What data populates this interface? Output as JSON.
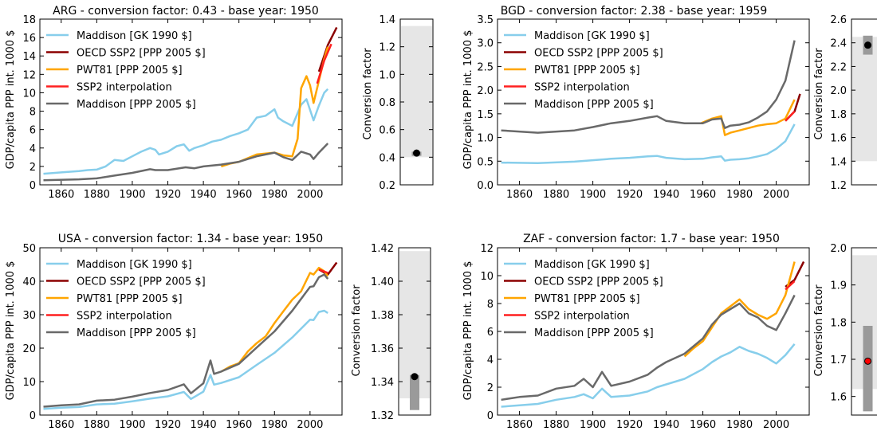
{
  "chart_data": [
    {
      "type": "line",
      "title": "ARG - conversion factor: 0.43 - base year: 1950",
      "ylabel": "GDP/capita PPP int. 1000 $",
      "xlabel": "",
      "xlim": [
        1848,
        2018
      ],
      "ylim": [
        0,
        18
      ],
      "xticks": [
        1860,
        1880,
        1900,
        1920,
        1940,
        1960,
        1980,
        2000
      ],
      "yticks": [
        0,
        2,
        4,
        6,
        8,
        10,
        12,
        14,
        16,
        18
      ],
      "legend_loc": "upper-left",
      "series": [
        {
          "name": "Maddison [GK 1990 $]",
          "color": "#87ceeb",
          "x": [
            1850,
            1860,
            1870,
            1875,
            1880,
            1885,
            1890,
            1895,
            1900,
            1905,
            1910,
            1913,
            1915,
            1920,
            1925,
            1929,
            1932,
            1935,
            1940,
            1945,
            1950,
            1955,
            1960,
            1965,
            1970,
            1975,
            1980,
            1982,
            1985,
            1990,
            1995,
            1998,
            2002,
            2005,
            2008,
            2010
          ],
          "y": [
            1.2,
            1.35,
            1.5,
            1.6,
            1.65,
            2.0,
            2.7,
            2.6,
            3.1,
            3.6,
            4.0,
            3.8,
            3.3,
            3.6,
            4.2,
            4.4,
            3.7,
            4.0,
            4.3,
            4.7,
            4.9,
            5.3,
            5.6,
            6.0,
            7.3,
            7.5,
            8.2,
            7.3,
            6.9,
            6.4,
            8.7,
            9.3,
            7.0,
            8.6,
            10.0,
            10.4
          ]
        },
        {
          "name": "OECD SSP2 [PPP 2005 $]",
          "color": "#8b0000",
          "x": [
            2005,
            2010,
            2015
          ],
          "y": [
            12.3,
            15.2,
            17.1
          ]
        },
        {
          "name": "PWT81 [PPP 2005 $]",
          "color": "#ffa500",
          "x": [
            1950,
            1955,
            1960,
            1965,
            1970,
            1975,
            1980,
            1985,
            1990,
            1993,
            1995,
            1998,
            2000,
            2002,
            2005,
            2008,
            2010
          ],
          "y": [
            2.0,
            2.3,
            2.5,
            2.9,
            3.3,
            3.4,
            3.5,
            3.2,
            3.1,
            5.0,
            10.5,
            11.8,
            10.8,
            8.9,
            11.3,
            13.7,
            15.0
          ]
        },
        {
          "name": "SSP2 interpolation",
          "color": "#ff2020",
          "x": [
            2004,
            2008,
            2012
          ],
          "y": [
            11.0,
            13.5,
            15.3
          ]
        },
        {
          "name": "Maddison [PPP 2005 $]",
          "color": "#696969",
          "x": [
            1850,
            1870,
            1880,
            1890,
            1900,
            1910,
            1913,
            1920,
            1930,
            1935,
            1940,
            1945,
            1950,
            1960,
            1970,
            1975,
            1980,
            1985,
            1990,
            1995,
            2000,
            2002,
            2005,
            2010
          ],
          "y": [
            0.5,
            0.6,
            0.7,
            1.0,
            1.3,
            1.7,
            1.6,
            1.6,
            1.9,
            1.8,
            2.0,
            2.1,
            2.2,
            2.5,
            3.1,
            3.3,
            3.5,
            3.0,
            2.7,
            3.6,
            3.3,
            2.8,
            3.5,
            4.5
          ]
        }
      ]
    },
    {
      "type": "range",
      "ylabel": "Conversion factor",
      "ylim": [
        0.2,
        1.4
      ],
      "yticks": [
        "0.2",
        "0.4",
        "0.6",
        "0.8",
        "1.0",
        "1.2",
        "1.4"
      ],
      "light_range": [
        0.4,
        1.35
      ],
      "dark_range": [
        0.41,
        0.44
      ],
      "point": 0.43,
      "point_color": "#000000"
    },
    {
      "type": "line",
      "title": "BGD - conversion factor: 2.38 - base year: 1959",
      "ylabel": "GDP/capita PPP int. 1000 $",
      "xlabel": "",
      "xlim": [
        1848,
        2018
      ],
      "ylim": [
        0,
        3.5
      ],
      "xticks": [
        1860,
        1880,
        1900,
        1920,
        1940,
        1960,
        1980,
        2000
      ],
      "yticks": [
        "0.0",
        "0.5",
        "1.0",
        "1.5",
        "2.0",
        "2.5",
        "3.0",
        "3.5"
      ],
      "legend_loc": "upper-left",
      "series": [
        {
          "name": "Maddison [GK 1990 $]",
          "color": "#87ceeb",
          "x": [
            1850,
            1870,
            1890,
            1900,
            1910,
            1920,
            1930,
            1935,
            1940,
            1950,
            1960,
            1965,
            1970,
            1972,
            1975,
            1980,
            1985,
            1990,
            1995,
            2000,
            2005,
            2010
          ],
          "y": [
            0.47,
            0.46,
            0.49,
            0.52,
            0.55,
            0.57,
            0.6,
            0.61,
            0.57,
            0.54,
            0.55,
            0.58,
            0.6,
            0.51,
            0.53,
            0.54,
            0.56,
            0.6,
            0.65,
            0.76,
            0.92,
            1.28
          ]
        },
        {
          "name": "OECD SSP2 [PPP 2005 $]",
          "color": "#8b0000",
          "x": [
            2005,
            2010,
            2013
          ],
          "y": [
            1.35,
            1.55,
            1.92
          ]
        },
        {
          "name": "PWT81 [PPP 2005 $]",
          "color": "#ffa500",
          "x": [
            1959,
            1965,
            1970,
            1972,
            1975,
            1980,
            1985,
            1990,
            1995,
            2000,
            2005,
            2010
          ],
          "y": [
            1.3,
            1.4,
            1.45,
            1.05,
            1.1,
            1.15,
            1.2,
            1.25,
            1.28,
            1.3,
            1.4,
            1.8
          ]
        },
        {
          "name": "SSP2 interpolation",
          "color": "#ff2020",
          "x": [
            2005,
            2010
          ],
          "y": [
            1.35,
            1.55
          ]
        },
        {
          "name": "Maddison [PPP 2005 $]",
          "color": "#696969",
          "x": [
            1850,
            1870,
            1890,
            1900,
            1910,
            1920,
            1930,
            1935,
            1940,
            1950,
            1960,
            1965,
            1970,
            1972,
            1975,
            1980,
            1985,
            1990,
            1995,
            2000,
            2005,
            2010
          ],
          "y": [
            1.15,
            1.1,
            1.15,
            1.22,
            1.3,
            1.35,
            1.42,
            1.45,
            1.35,
            1.3,
            1.3,
            1.38,
            1.4,
            1.2,
            1.25,
            1.27,
            1.32,
            1.42,
            1.55,
            1.8,
            2.2,
            3.05
          ]
        }
      ]
    },
    {
      "type": "range",
      "ylabel": "Conversion factor",
      "ylim": [
        1.2,
        2.6
      ],
      "yticks": [
        "1.2",
        "1.4",
        "1.6",
        "1.8",
        "2.0",
        "2.2",
        "2.4",
        "2.6"
      ],
      "light_range": [
        1.4,
        2.45
      ],
      "dark_range": [
        2.3,
        2.46
      ],
      "point": 2.38,
      "point_color": "#000000"
    },
    {
      "type": "line",
      "title": "USA - conversion factor: 1.34 - base year: 1950",
      "ylabel": "GDP/capita PPP int. 1000 $",
      "xlabel": "",
      "xlim": [
        1848,
        2018
      ],
      "ylim": [
        0,
        50
      ],
      "xticks": [
        1860,
        1880,
        1900,
        1920,
        1940,
        1960,
        1980,
        2000
      ],
      "yticks": [
        0,
        10,
        20,
        30,
        40,
        50
      ],
      "legend_loc": "upper-left",
      "series": [
        {
          "name": "Maddison [GK 1990 $]",
          "color": "#87ceeb",
          "x": [
            1850,
            1860,
            1870,
            1880,
            1890,
            1900,
            1910,
            1920,
            1929,
            1933,
            1940,
            1944,
            1946,
            1950,
            1960,
            1970,
            1980,
            1990,
            2000,
            2002,
            2005,
            2008,
            2010
          ],
          "y": [
            1.85,
            2.2,
            2.4,
            3.2,
            3.4,
            4.1,
            4.9,
            5.6,
            6.9,
            4.8,
            7.0,
            12.0,
            9.1,
            9.6,
            11.3,
            15.0,
            18.6,
            23.2,
            28.5,
            28.4,
            30.8,
            31.2,
            30.5
          ]
        },
        {
          "name": "OECD SSP2 [PPP 2005 $]",
          "color": "#8b0000",
          "x": [
            2005,
            2010,
            2015
          ],
          "y": [
            43.5,
            42.0,
            45.6
          ]
        },
        {
          "name": "PWT81 [PPP 2005 $]",
          "color": "#ffa500",
          "x": [
            1950,
            1955,
            1960,
            1965,
            1970,
            1975,
            1980,
            1985,
            1990,
            1995,
            2000,
            2002,
            2005,
            2008,
            2010
          ],
          "y": [
            13.0,
            14.5,
            15.5,
            19.0,
            21.5,
            23.5,
            27.5,
            31.0,
            34.5,
            37.0,
            42.5,
            42.0,
            44.0,
            43.0,
            41.5
          ]
        },
        {
          "name": "SSP2 interpolation",
          "color": "#ff2020",
          "x": [
            2005,
            2010
          ],
          "y": [
            43.5,
            42.5
          ]
        },
        {
          "name": "Maddison [PPP 2005 $]",
          "color": "#696969",
          "x": [
            1850,
            1860,
            1870,
            1880,
            1890,
            1900,
            1910,
            1920,
            1929,
            1933,
            1940,
            1944,
            1946,
            1950,
            1960,
            1970,
            1980,
            1990,
            2000,
            2002,
            2005,
            2008,
            2010
          ],
          "y": [
            2.5,
            2.9,
            3.2,
            4.3,
            4.6,
            5.5,
            6.6,
            7.5,
            9.2,
            6.5,
            9.5,
            16.3,
            12.3,
            13.0,
            15.3,
            20.2,
            25.0,
            31.2,
            38.3,
            38.5,
            41.2,
            42.0,
            40.7
          ]
        }
      ]
    },
    {
      "type": "range",
      "ylabel": "Conversion factor",
      "ylim": [
        1.32,
        1.42
      ],
      "yticks": [
        "1.32",
        "1.34",
        "1.36",
        "1.38",
        "1.40",
        "1.42"
      ],
      "light_range": [
        1.33,
        1.418
      ],
      "dark_range": [
        1.323,
        1.344
      ],
      "point": 1.343,
      "point_color": "#000000"
    },
    {
      "type": "line",
      "title": "ZAF - conversion factor: 1.7 - base year: 1950",
      "ylabel": "GDP/capita PPP int. 1000 $",
      "xlabel": "",
      "xlim": [
        1848,
        2018
      ],
      "ylim": [
        0,
        12
      ],
      "xticks": [
        1860,
        1880,
        1900,
        1920,
        1940,
        1960,
        1980,
        2000
      ],
      "yticks": [
        0,
        2,
        4,
        6,
        8,
        10,
        12
      ],
      "legend_loc": "upper-left",
      "series": [
        {
          "name": "Maddison [GK 1990 $]",
          "color": "#87ceeb",
          "x": [
            1850,
            1860,
            1870,
            1880,
            1890,
            1895,
            1900,
            1905,
            1910,
            1920,
            1930,
            1935,
            1940,
            1950,
            1960,
            1965,
            1970,
            1975,
            1980,
            1985,
            1990,
            1995,
            2000,
            2005,
            2010
          ],
          "y": [
            0.6,
            0.7,
            0.8,
            1.1,
            1.3,
            1.5,
            1.2,
            1.9,
            1.3,
            1.4,
            1.7,
            2.0,
            2.2,
            2.6,
            3.3,
            3.8,
            4.2,
            4.5,
            4.9,
            4.6,
            4.4,
            4.1,
            3.7,
            4.3,
            5.1
          ]
        },
        {
          "name": "OECD SSP2 [PPP 2005 $]",
          "color": "#8b0000",
          "x": [
            2005,
            2010,
            2015
          ],
          "y": [
            9.2,
            9.7,
            11.0
          ]
        },
        {
          "name": "PWT81 [PPP 2005 $]",
          "color": "#ffa500",
          "x": [
            1950,
            1955,
            1960,
            1965,
            1970,
            1975,
            1980,
            1985,
            1990,
            1995,
            2000,
            2005,
            2010
          ],
          "y": [
            4.2,
            4.8,
            5.3,
            6.3,
            7.3,
            7.8,
            8.3,
            7.6,
            7.2,
            6.9,
            7.3,
            8.6,
            11.0
          ]
        },
        {
          "name": "SSP2 interpolation",
          "color": "#ff2020",
          "x": [
            2005,
            2010
          ],
          "y": [
            9.0,
            9.6
          ]
        },
        {
          "name": "Maddison [PPP 2005 $]",
          "color": "#696969",
          "x": [
            1850,
            1860,
            1870,
            1880,
            1890,
            1895,
            1900,
            1905,
            1910,
            1920,
            1930,
            1935,
            1940,
            1950,
            1960,
            1965,
            1970,
            1975,
            1980,
            1985,
            1990,
            1995,
            2000,
            2005,
            2010
          ],
          "y": [
            1.1,
            1.3,
            1.4,
            1.9,
            2.1,
            2.6,
            2.0,
            3.1,
            2.1,
            2.4,
            2.9,
            3.4,
            3.8,
            4.4,
            5.5,
            6.5,
            7.2,
            7.6,
            8.0,
            7.3,
            7.0,
            6.4,
            6.1,
            7.3,
            8.6
          ]
        }
      ]
    },
    {
      "type": "range",
      "ylabel": "Conversion factor",
      "ylim": [
        1.55,
        2.0
      ],
      "yticks": [
        "1.6",
        "1.7",
        "1.8",
        "1.9",
        "2.0"
      ],
      "light_range": [
        1.62,
        1.98
      ],
      "dark_range": [
        1.56,
        1.79
      ],
      "point": 1.695,
      "point_color": "#ff0000"
    }
  ]
}
